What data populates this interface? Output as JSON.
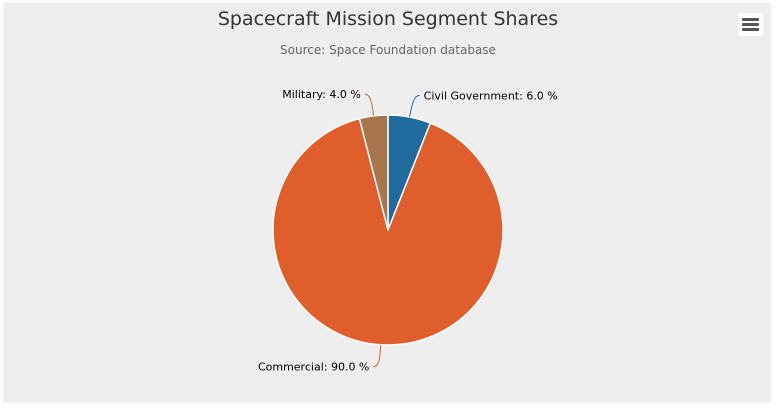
{
  "chart_data": {
    "type": "pie",
    "title": "Spacecraft Mission Segment Shares",
    "subtitle": "Source: Space Foundation database",
    "value_suffix": " %",
    "slices": [
      {
        "name": "Civil Government",
        "value": 6.0,
        "color": "#1f6b9e"
      },
      {
        "name": "Commercial",
        "value": 90.0,
        "color": "#e05d2c"
      },
      {
        "name": "Military",
        "value": 4.0,
        "color": "#a8764d"
      }
    ]
  },
  "menu": {
    "icon": "hamburger-menu-icon"
  }
}
